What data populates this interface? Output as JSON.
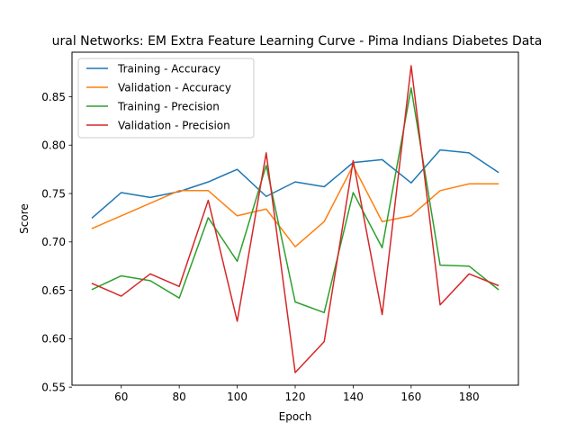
{
  "chart_data": {
    "type": "line",
    "title": "ural Networks: EM Extra Feature Learning Curve - Pima Indians Diabetes Data",
    "xlabel": "Epoch",
    "ylabel": "Score",
    "xlim": [
      43,
      197
    ],
    "ylim": [
      0.552,
      0.896
    ],
    "xticks": [
      60,
      80,
      100,
      120,
      140,
      160,
      180
    ],
    "xtick_labels": [
      "60",
      "80",
      "100",
      "120",
      "140",
      "160",
      "180"
    ],
    "yticks": [
      0.55,
      0.6,
      0.65,
      0.7,
      0.75,
      0.8,
      0.85
    ],
    "ytick_labels": [
      "0.55",
      "0.60",
      "0.65",
      "0.70",
      "0.75",
      "0.80",
      "0.85"
    ],
    "x": [
      50,
      60,
      70,
      80,
      90,
      100,
      110,
      120,
      130,
      140,
      150,
      160,
      170,
      180,
      190
    ],
    "legend_position": "top-left",
    "series": [
      {
        "name": "Training - Accuracy",
        "color": "#1f77b4",
        "values": [
          0.725,
          0.751,
          0.746,
          0.752,
          0.762,
          0.775,
          0.747,
          0.762,
          0.757,
          0.782,
          0.785,
          0.761,
          0.795,
          0.792,
          0.772
        ]
      },
      {
        "name": "Validation - Accuracy",
        "color": "#ff7f0e",
        "values": [
          0.714,
          0.727,
          0.74,
          0.753,
          0.753,
          0.727,
          0.734,
          0.695,
          0.721,
          0.779,
          0.721,
          0.727,
          0.753,
          0.76,
          0.76
        ]
      },
      {
        "name": "Training - Precision",
        "color": "#2ca02c",
        "values": [
          0.651,
          0.665,
          0.66,
          0.642,
          0.725,
          0.68,
          0.779,
          0.638,
          0.627,
          0.751,
          0.694,
          0.859,
          0.676,
          0.675,
          0.651
        ]
      },
      {
        "name": "Validation - Precision",
        "color": "#d62728",
        "values": [
          0.657,
          0.644,
          0.667,
          0.654,
          0.743,
          0.618,
          0.792,
          0.565,
          0.597,
          0.784,
          0.625,
          0.882,
          0.635,
          0.667,
          0.655
        ]
      }
    ]
  }
}
